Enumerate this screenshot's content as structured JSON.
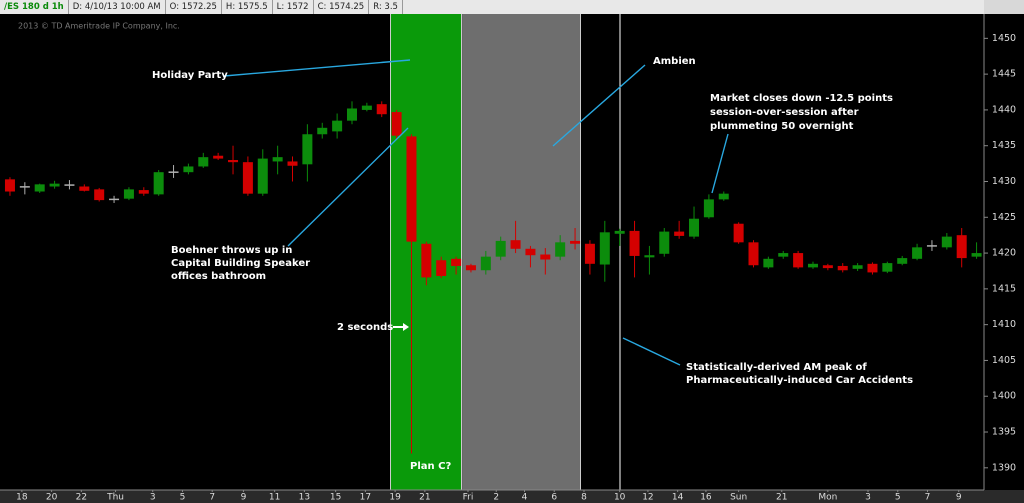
{
  "header": [
    "/ES 180 d 1h",
    "D: 4/10/13 10:00 AM",
    "O: 1572.25",
    "H: 1575.5",
    "L: 1572",
    "C: 1574.25",
    "R: 3.5"
  ],
  "chart_data": {
    "type": "candlestick",
    "copyright": "2013 © TD Ameritrade IP Company, Inc.",
    "series": [
      {
        "name": "/ES",
        "up_color": "#0c8c0c",
        "down_color": "#d40000",
        "flat_color": "#b0b0b0",
        "open": [
          1430.3,
          1429.25,
          1428.6,
          1429.3,
          1429.5,
          1429.3,
          1428.9,
          1427.5,
          1427.6,
          1428.8,
          1428.2,
          1431.3,
          1431.3,
          1432.1,
          1433.6,
          1433,
          1432.7,
          1428.3,
          1432.8,
          1432.8,
          1432.4,
          1436.6,
          1437,
          1438.5,
          1440,
          1440.8,
          1439.7,
          1436.3,
          1421.3,
          1419,
          1419.2,
          1418.3,
          1417.6,
          1419.5,
          1421.8,
          1420.6,
          1419.8,
          1419.5,
          1421.7,
          1421.3,
          1418.4,
          1422.7,
          1423.1,
          1419.4,
          1419.9,
          1423,
          1422.3,
          1425,
          1427.5,
          1424.1,
          1421.5,
          1418,
          1419.5,
          1420,
          1418,
          1418.3,
          1418.2,
          1417.8,
          1418.5,
          1417.4,
          1418.5,
          1419.2,
          1421,
          1420.8,
          1422.5,
          1419.5
        ],
        "high": [
          1430.6,
          1429.9,
          1429.7,
          1430.1,
          1430.2,
          1429.6,
          1429.1,
          1428,
          1429.2,
          1429.2,
          1431.6,
          1432.3,
          1432.5,
          1434,
          1434,
          1435,
          1433.5,
          1434.5,
          1435,
          1433.5,
          1438,
          1438.2,
          1439.5,
          1441.2,
          1441,
          1441.2,
          1440,
          1436.6,
          1421.6,
          1419.5,
          1419.5,
          1418.5,
          1420.3,
          1422.3,
          1424.5,
          1421,
          1420.7,
          1422.5,
          1423.5,
          1421.8,
          1424.5,
          1423.4,
          1424.5,
          1421,
          1423.5,
          1424.5,
          1426.5,
          1428.2,
          1428.6,
          1424.3,
          1421.8,
          1419.5,
          1420.3,
          1420.3,
          1418.8,
          1418.5,
          1418.6,
          1418.6,
          1418.7,
          1418.8,
          1419.6,
          1421.3,
          1421.8,
          1422.8,
          1423.5,
          1421.5
        ],
        "low": [
          1428,
          1428.2,
          1428.4,
          1429,
          1428.9,
          1428.6,
          1427.2,
          1427,
          1427.4,
          1428,
          1428,
          1430.5,
          1431,
          1431.9,
          1433,
          1431,
          1428,
          1428,
          1431,
          1430,
          1430,
          1436,
          1436,
          1438,
          1439.8,
          1439,
          1436,
          1392,
          1415.5,
          1416.5,
          1417,
          1417.3,
          1417,
          1419,
          1420,
          1418,
          1417,
          1419,
          1420.5,
          1417,
          1416,
          1421,
          1416.6,
          1417,
          1419.5,
          1422,
          1422,
          1424.8,
          1427.3,
          1421.3,
          1418,
          1417.8,
          1419.2,
          1417.8,
          1417.8,
          1417.6,
          1417.3,
          1417.5,
          1417,
          1417.2,
          1418.3,
          1419,
          1420.3,
          1420.5,
          1418,
          1419.2
        ],
        "close": [
          1428.6,
          1429.25,
          1429.6,
          1429.7,
          1429.5,
          1428.7,
          1427.4,
          1427.5,
          1428.9,
          1428.3,
          1431.3,
          1431.3,
          1432.1,
          1433.4,
          1433.2,
          1432.7,
          1428.3,
          1433.2,
          1433.4,
          1432.2,
          1436.6,
          1437.5,
          1438.5,
          1440.2,
          1440.6,
          1439.4,
          1436.4,
          1421.6,
          1416.6,
          1416.8,
          1418.2,
          1417.6,
          1419.5,
          1421.7,
          1420.6,
          1419.7,
          1419.1,
          1421.5,
          1421.3,
          1418.5,
          1422.9,
          1423.1,
          1419.6,
          1419.7,
          1423,
          1422.4,
          1424.8,
          1427.5,
          1428.3,
          1421.5,
          1418.3,
          1419.2,
          1420,
          1418,
          1418.5,
          1417.9,
          1417.6,
          1418.3,
          1417.3,
          1418.6,
          1419.3,
          1420.8,
          1421,
          1422.3,
          1419.3,
          1420
        ]
      }
    ],
    "ylim": [
      1386.9,
      1453.4
    ],
    "yticks": [
      1390,
      1395,
      1400,
      1405,
      1410,
      1415,
      1420,
      1425,
      1430,
      1435,
      1440,
      1445,
      1450
    ],
    "xlim": [
      -0.67,
      65.5
    ],
    "xticks": [
      {
        "value": 0.8,
        "label": "18"
      },
      {
        "value": 2.8,
        "label": "20"
      },
      {
        "value": 4.8,
        "label": "22"
      },
      {
        "value": 7.1,
        "label": "Thu"
      },
      {
        "value": 9.6,
        "label": "3"
      },
      {
        "value": 11.6,
        "label": "5"
      },
      {
        "value": 13.6,
        "label": "7"
      },
      {
        "value": 15.7,
        "label": "9"
      },
      {
        "value": 17.8,
        "label": "11"
      },
      {
        "value": 19.8,
        "label": "13"
      },
      {
        "value": 21.9,
        "label": "15"
      },
      {
        "value": 23.9,
        "label": "17"
      },
      {
        "value": 25.9,
        "label": "19"
      },
      {
        "value": 27.9,
        "label": "21"
      },
      {
        "value": 30.8,
        "label": "Fri"
      },
      {
        "value": 32.7,
        "label": "2"
      },
      {
        "value": 34.6,
        "label": "4"
      },
      {
        "value": 36.6,
        "label": "6"
      },
      {
        "value": 38.6,
        "label": "8"
      },
      {
        "value": 41,
        "label": "10"
      },
      {
        "value": 42.9,
        "label": "12"
      },
      {
        "value": 44.9,
        "label": "14"
      },
      {
        "value": 46.8,
        "label": "16"
      },
      {
        "value": 49,
        "label": "Sun"
      },
      {
        "value": 51.9,
        "label": "21"
      },
      {
        "value": 55,
        "label": "Mon"
      },
      {
        "value": 57.7,
        "label": "3"
      },
      {
        "value": 59.7,
        "label": "5"
      },
      {
        "value": 61.7,
        "label": "7"
      },
      {
        "value": 63.8,
        "label": "9"
      }
    ],
    "annotations": [
      {
        "lines": [
          "Holiday Party"
        ]
      },
      {
        "lines": [
          "Ambien"
        ]
      },
      {
        "lines": [
          "Market closes down -12.5 points",
          "session-over-session after",
          "plummeting 50 overnight"
        ]
      },
      {
        "lines": [
          "Boehner throws up in",
          "Capital Building Speaker",
          "offices bathroom"
        ]
      },
      {
        "lines": [
          "2 seconds"
        ]
      },
      {
        "lines": [
          "Plan C?"
        ]
      },
      {
        "lines": [
          "Statistically-derived AM peak of",
          "Pharmaceutically-induced Car Accidents"
        ]
      }
    ]
  }
}
